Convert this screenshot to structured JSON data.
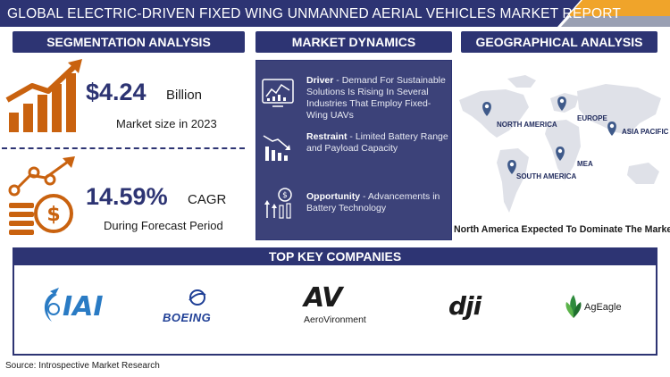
{
  "header": {
    "title": "GLOBAL ELECTRIC-DRIVEN FIXED WING UNMANNED AERIAL VEHICLES MARKET REPORT"
  },
  "colors": {
    "navy": "#2d3473",
    "orange": "#c9620f",
    "panel": "#3c4279",
    "accent_bar": "#f0a42a"
  },
  "segmentation": {
    "heading": "SEGMENTATION ANALYSIS",
    "market_value": "$4.24",
    "market_unit": "Billion",
    "market_caption": "Market size in 2023",
    "cagr_value": "14.59%",
    "cagr_unit": "CAGR",
    "cagr_caption": "During Forecast Period",
    "icons": [
      "growth-chart-icon",
      "money-stack-growth-icon"
    ]
  },
  "dynamics": {
    "heading": "MARKET DYNAMICS",
    "items": [
      {
        "icon": "analytics-dashboard-icon",
        "label": "Driver",
        "text": " - Demand For Sustainable Solutions Is Rising In Several Industries That Employ Fixed-Wing UAVs"
      },
      {
        "icon": "declining-chart-icon",
        "label": "Restraint",
        "text": " - Limited Battery Range and Payload Capacity"
      },
      {
        "icon": "opportunity-chart-icon",
        "label": "Opportunity",
        "text": " - Advancements in Battery Technology"
      }
    ]
  },
  "geography": {
    "heading": "GEOGRAPHICAL ANALYSIS",
    "regions": [
      "NORTH AMERICA",
      "EUROPE",
      "ASIA PACIFIC",
      "MEA",
      "SOUTH AMERICA"
    ],
    "footer": "North America Expected To Dominate The Market"
  },
  "companies": {
    "heading": "TOP KEY COMPANIES",
    "logos": [
      "IAI",
      "BOEING",
      "AV",
      "AeroVironment",
      "dji",
      "AgEagle"
    ]
  },
  "source": "Source: Introspective Market Research"
}
